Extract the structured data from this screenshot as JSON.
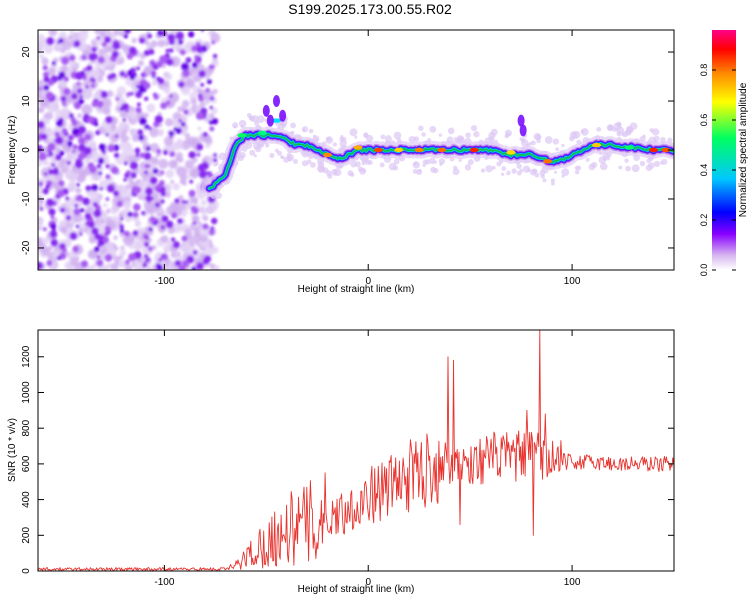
{
  "title": "S199.2025.173.00.55.R02",
  "chart_data": [
    {
      "type": "heatmap",
      "xlabel": "Height of straight line (km)",
      "ylabel": "Frequency (Hz)",
      "xlim": [
        -162,
        150
      ],
      "ylim": [
        -24.5,
        24.5
      ],
      "x_ticks": [
        "-100",
        "0",
        "100"
      ],
      "y_ticks": [
        "-20",
        "-10",
        "0",
        "10",
        "20"
      ],
      "colorbar": {
        "label": "Normalized spectral amplitude",
        "range": [
          0,
          0.96
        ],
        "ticks": [
          "0.0",
          "0.2",
          "0.4",
          "0.6",
          "0.8"
        ],
        "colors": [
          "#ffffff",
          "#d8b8f0",
          "#8800ff",
          "#0000ff",
          "#00c8ff",
          "#00ff60",
          "#ffff00",
          "#ff8800",
          "#ff0000",
          "#ff0088"
        ]
      },
      "trace": {
        "x": [
          -78,
          -70,
          -65,
          -60,
          -55,
          -50,
          -45,
          -40,
          -35,
          -30,
          -25,
          -20,
          -15,
          -10,
          -5,
          0,
          10,
          20,
          30,
          40,
          50,
          60,
          70,
          80,
          85,
          90,
          95,
          100,
          110,
          120,
          130,
          140,
          150
        ],
        "y": [
          -8,
          -5,
          1,
          3,
          3,
          3,
          3,
          2,
          1,
          1,
          0,
          -1,
          -2,
          -1,
          0,
          0,
          0,
          0,
          0,
          0,
          0,
          0,
          -1,
          -1,
          -1.5,
          -2.5,
          -2,
          -1,
          1,
          1,
          0.5,
          0,
          0
        ]
      }
    },
    {
      "type": "line",
      "xlabel": "Height of straight line (km)",
      "ylabel": "SNR (10 * v/v)",
      "xlim": [
        -162,
        150
      ],
      "ylim": [
        0,
        1350
      ],
      "x_ticks": [
        "-100",
        "0",
        "100"
      ],
      "y_ticks": [
        "0",
        "200",
        "400",
        "600",
        "800",
        "1000",
        "1200"
      ],
      "color": "#e8332e",
      "anchors": {
        "x": [
          -162,
          -70,
          -65,
          -55,
          -40,
          -25,
          -10,
          0,
          10,
          20,
          30,
          40,
          50,
          60,
          70,
          80,
          90,
          100,
          110,
          120,
          130,
          140,
          150
        ],
        "y": [
          10,
          10,
          30,
          120,
          230,
          280,
          340,
          420,
          470,
          530,
          580,
          620,
          600,
          640,
          640,
          650,
          620,
          610,
          610,
          600,
          600,
          600,
          600
        ]
      },
      "spikes": [
        {
          "x": 39,
          "y": 1200
        },
        {
          "x": 42,
          "y": 1180
        },
        {
          "x": 45,
          "y": 260
        },
        {
          "x": 78,
          "y": 900
        },
        {
          "x": 81,
          "y": 200
        },
        {
          "x": 84,
          "y": 1350
        },
        {
          "x": 87,
          "y": 880
        }
      ]
    }
  ]
}
